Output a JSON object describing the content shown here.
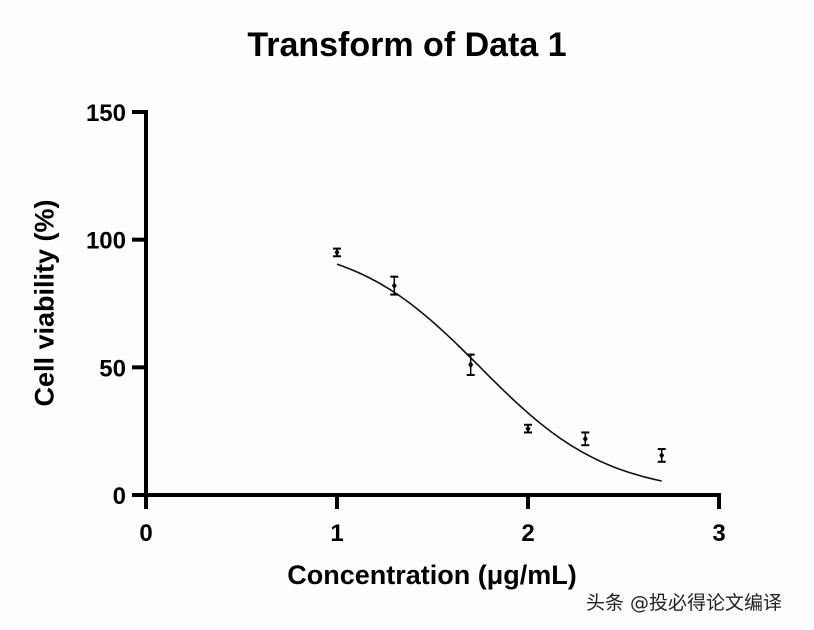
{
  "chart_data": {
    "type": "scatter",
    "title": "Transform of Data 1",
    "xlabel": "Concentration (μg/mL)",
    "ylabel": "Cell viability (%)",
    "xlim": [
      0,
      3
    ],
    "ylim": [
      0,
      150
    ],
    "xticks": [
      0,
      1,
      2,
      3
    ],
    "yticks": [
      0,
      50,
      100,
      150
    ],
    "grid": false,
    "legend": null,
    "series": [
      {
        "name": "Data 1",
        "x": [
          1.0,
          1.3,
          1.7,
          2.0,
          2.3,
          2.7
        ],
        "y": [
          95,
          82,
          51,
          26,
          22,
          15.5
        ],
        "error": [
          1.5,
          3.5,
          4,
          1.5,
          2.5,
          2.5
        ]
      }
    ],
    "fit_curve": {
      "model": "sigmoidal dose-response",
      "top": 100,
      "bottom": 0,
      "logEC50": 1.75,
      "hill_slope": -1.3,
      "x_range": [
        1.0,
        2.7
      ]
    }
  },
  "watermark": "头条 @投必得论文编译"
}
